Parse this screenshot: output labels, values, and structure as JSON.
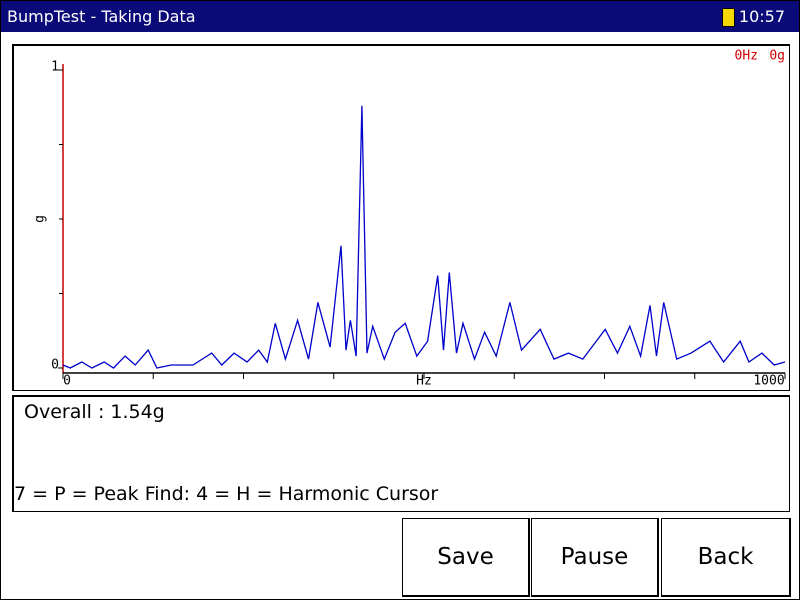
{
  "title_bar": {
    "title": "BumpTest - Taking Data",
    "time": "10:57"
  },
  "chart": {
    "type": "line",
    "x_label": "Hz",
    "y_label": "g",
    "color": "#0000cc",
    "cursor_readout": {
      "frequency": "0Hz",
      "amplitude": "0g"
    },
    "xlim": [
      0,
      1000
    ],
    "xticks": [
      0,
      1000
    ],
    "xminorticks": [
      125,
      250,
      375,
      500,
      625,
      750,
      875
    ],
    "ylim": [
      0,
      1
    ],
    "yticks": [
      0,
      1
    ],
    "yminorticks": [
      0.25,
      0.5,
      0.75
    ],
    "x": [
      0,
      10,
      26,
      40,
      57,
      70,
      86,
      100,
      118,
      130,
      150,
      180,
      206,
      220,
      237,
      255,
      271,
      283,
      294,
      308,
      325,
      340,
      353,
      370,
      385,
      392,
      398,
      406,
      414,
      421,
      429,
      445,
      460,
      474,
      490,
      505,
      519,
      527,
      535,
      545,
      554,
      570,
      584,
      600,
      619,
      635,
      661,
      680,
      700,
      720,
      751,
      768,
      785,
      800,
      813,
      822,
      832,
      850,
      870,
      896,
      915,
      938,
      950,
      968,
      985,
      1000
    ],
    "values": [
      0.01,
      0.0,
      0.02,
      0.0,
      0.02,
      0.0,
      0.04,
      0.01,
      0.06,
      0.0,
      0.01,
      0.01,
      0.05,
      0.01,
      0.05,
      0.02,
      0.06,
      0.02,
      0.15,
      0.03,
      0.16,
      0.03,
      0.22,
      0.07,
      0.41,
      0.06,
      0.16,
      0.04,
      0.88,
      0.05,
      0.14,
      0.03,
      0.12,
      0.15,
      0.04,
      0.09,
      0.31,
      0.06,
      0.32,
      0.05,
      0.15,
      0.03,
      0.12,
      0.04,
      0.22,
      0.06,
      0.13,
      0.03,
      0.05,
      0.03,
      0.13,
      0.05,
      0.14,
      0.04,
      0.21,
      0.04,
      0.22,
      0.03,
      0.05,
      0.09,
      0.02,
      0.09,
      0.02,
      0.05,
      0.01,
      0.02
    ]
  },
  "info": {
    "overall": "Overall  : 1.54g",
    "hint": "7 = P = Peak Find: 4 = H = Harmonic Cursor"
  },
  "buttons": [
    "Save",
    "Pause",
    "Back"
  ]
}
